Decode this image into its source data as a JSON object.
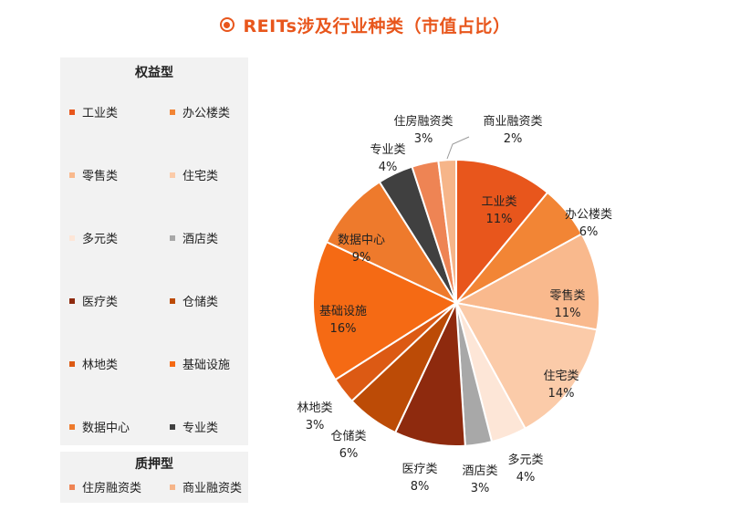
{
  "title": "REITs涉及行业种类（市值占比）",
  "legend": {
    "equity_heading": "权益型",
    "mortgage_heading": "质押型",
    "equity_items": [
      {
        "label": "工业类",
        "color": "#E8561C"
      },
      {
        "label": "办公楼类",
        "color": "#F28535"
      },
      {
        "label": "零售类",
        "color": "#F9B98D"
      },
      {
        "label": "住宅类",
        "color": "#FBCBA9"
      },
      {
        "label": "多元类",
        "color": "#FDE6D7"
      },
      {
        "label": "酒店类",
        "color": "#A8A8A8"
      },
      {
        "label": "医疗类",
        "color": "#8E2A0E"
      },
      {
        "label": "仓储类",
        "color": "#BC4B06"
      },
      {
        "label": "林地类",
        "color": "#DC5A14"
      },
      {
        "label": "基础设施",
        "color": "#F56A14"
      },
      {
        "label": "数据中心",
        "color": "#EE7A2C"
      },
      {
        "label": "专业类",
        "color": "#404040"
      }
    ],
    "mortgage_items": [
      {
        "label": "住房融资类",
        "color": "#EE8454"
      },
      {
        "label": "商业融资类",
        "color": "#F6B589"
      }
    ]
  },
  "chart_data": {
    "type": "pie",
    "title": "REITs涉及行业种类（市值占比）",
    "unit": "%",
    "slices": [
      {
        "name": "工业类",
        "value": 11,
        "label": "11%",
        "color": "#E8561C"
      },
      {
        "name": "办公楼类",
        "value": 6,
        "label": "6%",
        "color": "#F28535"
      },
      {
        "name": "零售类",
        "value": 11,
        "label": "11%",
        "color": "#F9B98D"
      },
      {
        "name": "住宅类",
        "value": 14,
        "label": "14%",
        "color": "#FBCBA9"
      },
      {
        "name": "多元类",
        "value": 4,
        "label": "4%",
        "color": "#FDE6D7"
      },
      {
        "name": "酒店类",
        "value": 3,
        "label": "3%",
        "color": "#A8A8A8"
      },
      {
        "name": "医疗类",
        "value": 8,
        "label": "8%",
        "color": "#8E2A0E"
      },
      {
        "name": "仓储类",
        "value": 6,
        "label": "6%",
        "color": "#BC4B06"
      },
      {
        "name": "林地类",
        "value": 3,
        "label": "3%",
        "color": "#DC5A14"
      },
      {
        "name": "基础设施",
        "value": 16,
        "label": "16%",
        "color": "#F56A14"
      },
      {
        "name": "数据中心",
        "value": 9,
        "label": "9%",
        "color": "#EE7A2C"
      },
      {
        "name": "专业类",
        "value": 4,
        "label": "4%",
        "color": "#404040"
      },
      {
        "name": "住房融资类",
        "value": 3,
        "label": "3%",
        "color": "#EE8454"
      },
      {
        "name": "商业融资类",
        "value": 2,
        "label": "2%",
        "color": "#F6B589"
      }
    ]
  }
}
